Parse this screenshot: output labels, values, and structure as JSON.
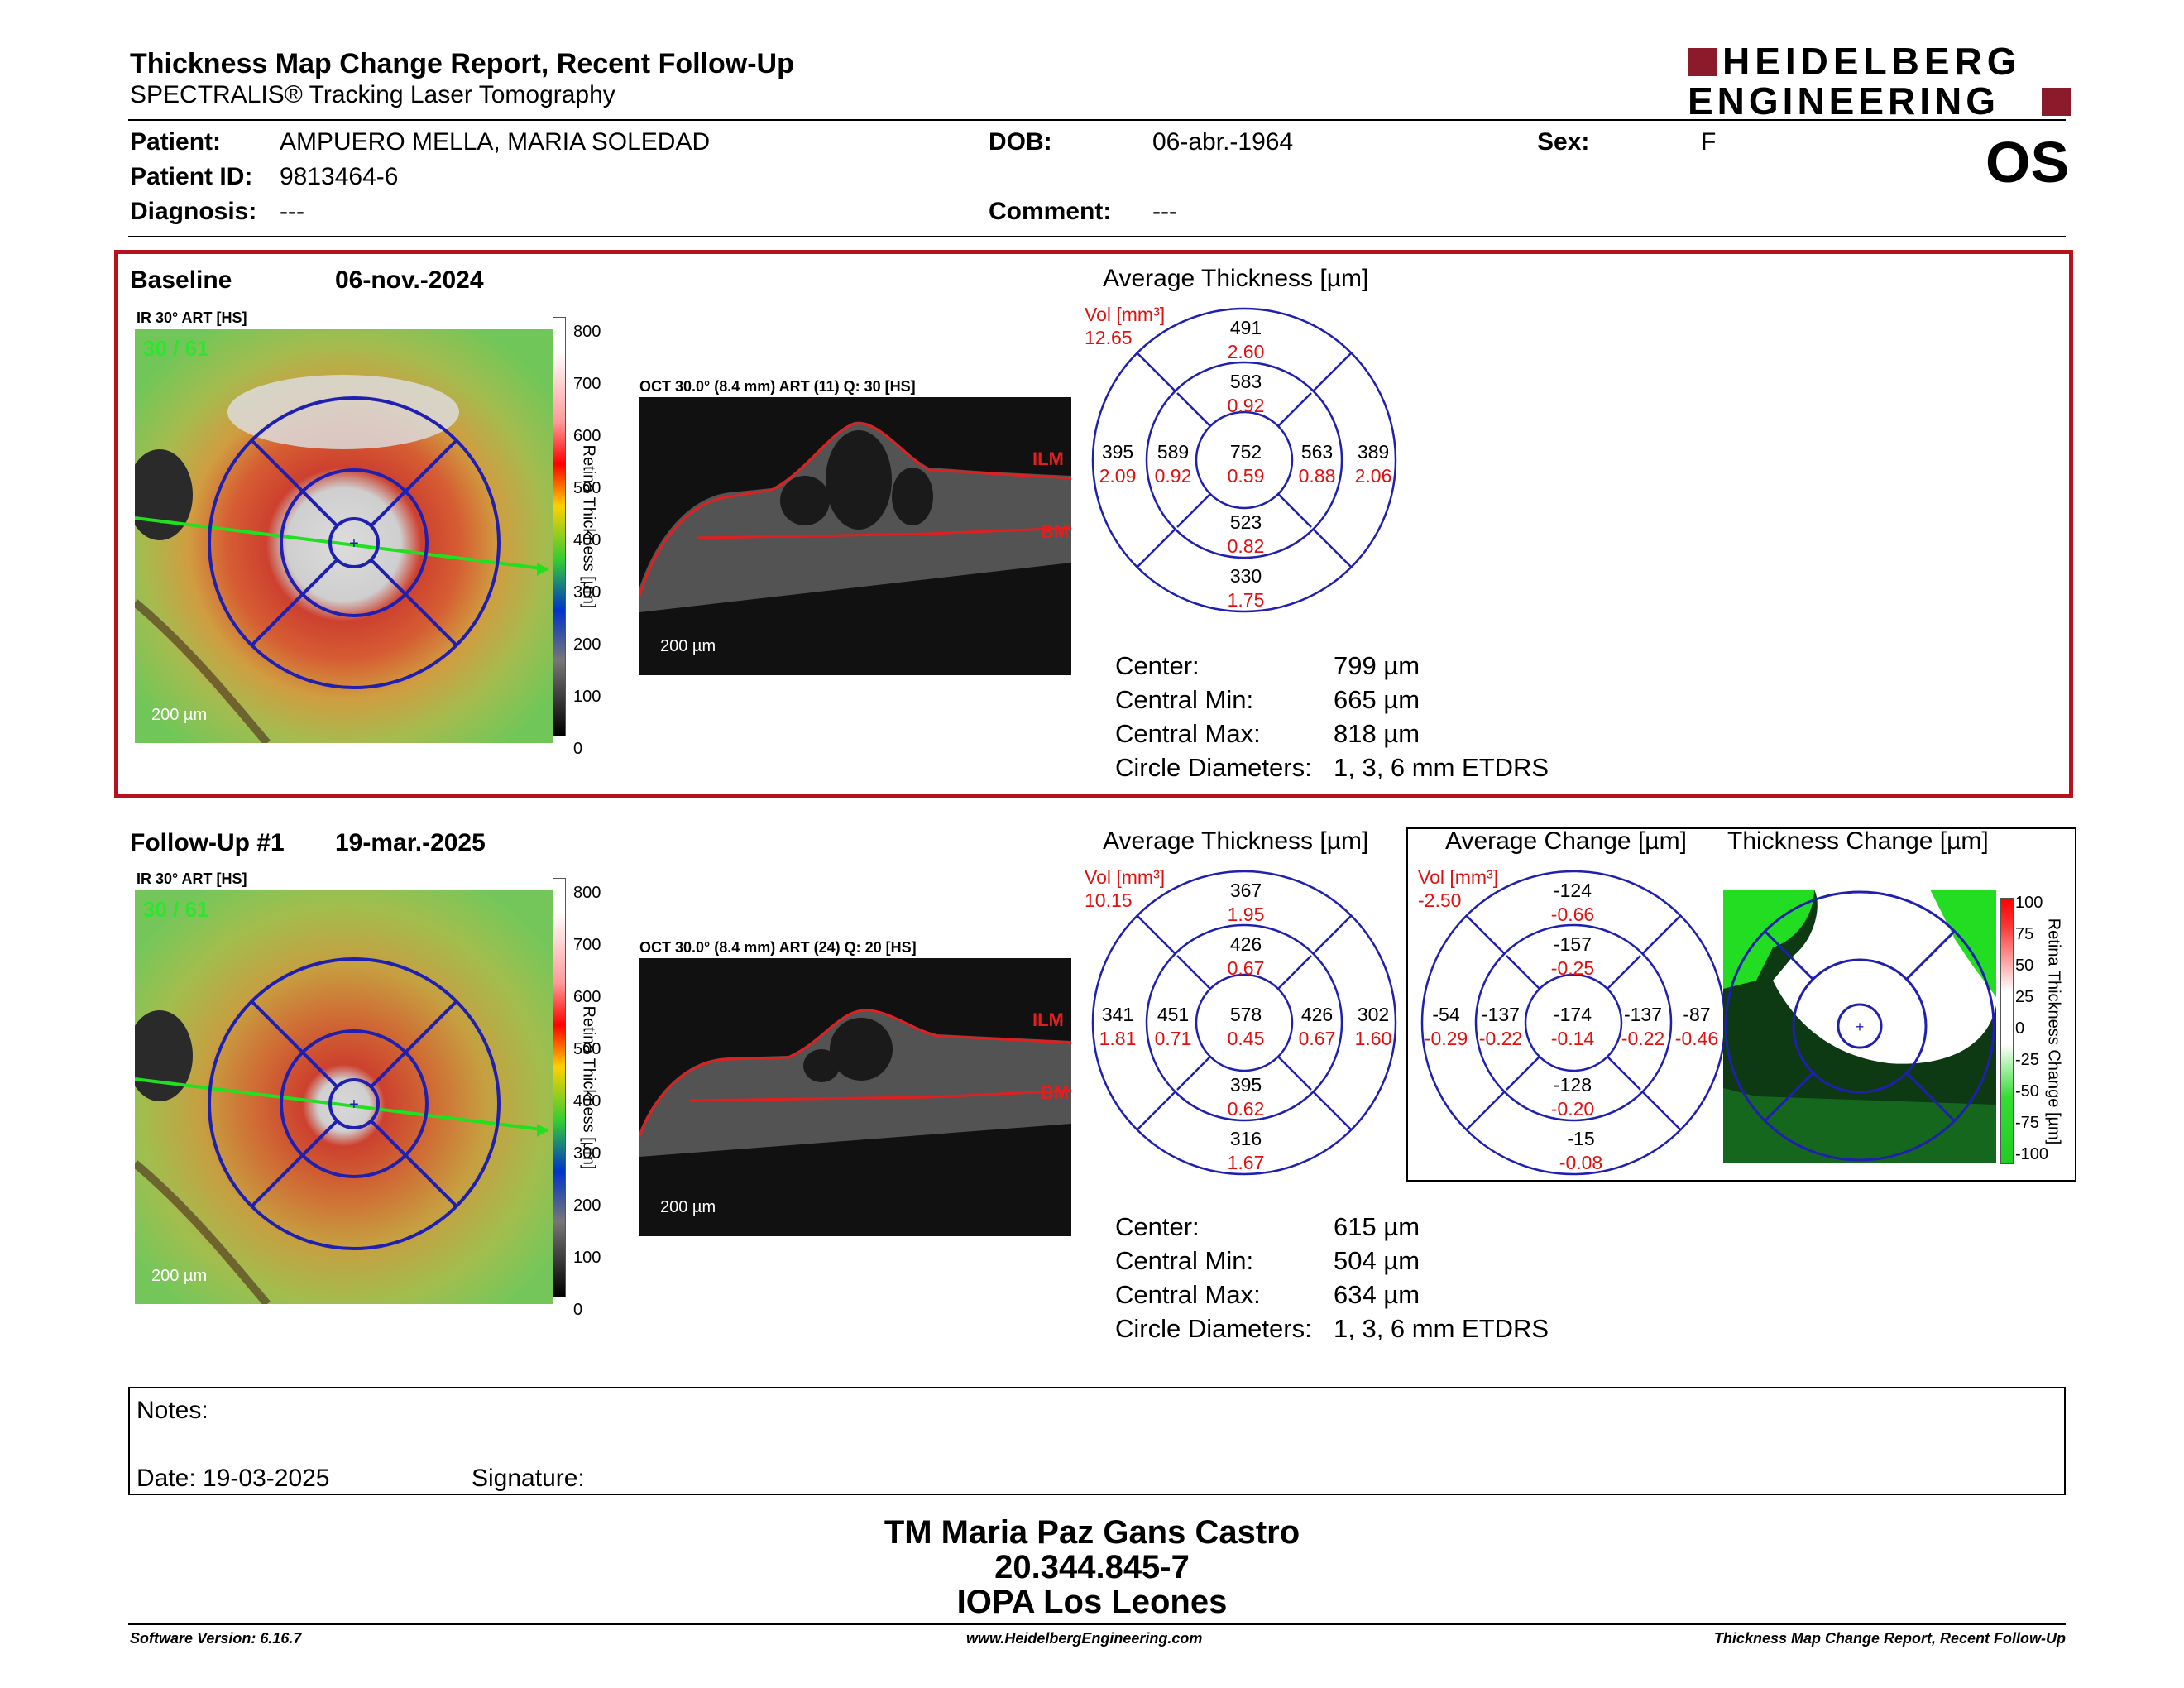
{
  "report": {
    "title": "Thickness Map Change Report, Recent Follow-Up",
    "subtitle": "SPECTRALIS® Tracking Laser Tomography",
    "brand_line1": "HEIDELBERG",
    "brand_line2": "ENGINEERING",
    "eye": "OS"
  },
  "patient": {
    "patient_label": "Patient:",
    "patient_value": "AMPUERO MELLA, MARIA SOLEDAD",
    "dob_label": "DOB:",
    "dob_value": "06-abr.-1964",
    "sex_label": "Sex:",
    "sex_value": "F",
    "id_label": "Patient ID:",
    "id_value": "9813464-6",
    "diag_label": "Diagnosis:",
    "diag_value": "---",
    "comment_label": "Comment:",
    "comment_value": "---"
  },
  "baseline": {
    "heading": "Baseline",
    "date": "06-nov.-2024",
    "ir_label": "IR 30° ART [HS]",
    "frame_counter": "30 / 61",
    "ir_scale": "200 µm",
    "oct_label": "OCT 30.0° (8.4 mm) ART (11) Q: 30 [HS]",
    "oct_scale": "200 µm",
    "ilm": "ILM",
    "bm": "BM",
    "avg_title": "Average Thickness [µm]",
    "vol_label": "Vol [mm³]",
    "vol_total": "12.65",
    "sectors": {
      "center": {
        "t": "752",
        "v": "0.59"
      },
      "inner_sup": {
        "t": "583",
        "v": "0.92"
      },
      "inner_nas": {
        "t": "589",
        "v": "0.92"
      },
      "inner_inf": {
        "t": "523",
        "v": "0.82"
      },
      "inner_tem": {
        "t": "563",
        "v": "0.88"
      },
      "outer_sup": {
        "t": "491",
        "v": "2.60"
      },
      "outer_nas": {
        "t": "395",
        "v": "2.09"
      },
      "outer_inf": {
        "t": "330",
        "v": "1.75"
      },
      "outer_tem": {
        "t": "389",
        "v": "2.06"
      }
    },
    "stats": {
      "center_label": "Center:",
      "center_value": "799 µm",
      "min_label": "Central Min:",
      "min_value": "665 µm",
      "max_label": "Central Max:",
      "max_value": "818 µm",
      "diam_label": "Circle Diameters:",
      "diam_value": "1, 3, 6 mm ETDRS"
    }
  },
  "followup": {
    "heading": "Follow-Up #1",
    "date": "19-mar.-2025",
    "ir_label": "IR 30° ART [HS]",
    "frame_counter": "30 / 61",
    "ir_scale": "200 µm",
    "oct_label": "OCT 30.0° (8.4 mm) ART (24) Q: 20 [HS]",
    "oct_scale": "200 µm",
    "ilm": "ILM",
    "bm": "BM",
    "avg_title": "Average Thickness [µm]",
    "vol_label": "Vol [mm³]",
    "vol_total": "10.15",
    "sectors": {
      "center": {
        "t": "578",
        "v": "0.45"
      },
      "inner_sup": {
        "t": "426",
        "v": "0.67"
      },
      "inner_nas": {
        "t": "451",
        "v": "0.71"
      },
      "inner_inf": {
        "t": "395",
        "v": "0.62"
      },
      "inner_tem": {
        "t": "426",
        "v": "0.67"
      },
      "outer_sup": {
        "t": "367",
        "v": "1.95"
      },
      "outer_nas": {
        "t": "341",
        "v": "1.81"
      },
      "outer_inf": {
        "t": "316",
        "v": "1.67"
      },
      "outer_tem": {
        "t": "302",
        "v": "1.60"
      }
    },
    "stats": {
      "center_label": "Center:",
      "center_value": "615 µm",
      "min_label": "Central Min:",
      "min_value": "504 µm",
      "max_label": "Central Max:",
      "max_value": "634 µm",
      "diam_label": "Circle Diameters:",
      "diam_value": "1, 3, 6 mm ETDRS"
    }
  },
  "change": {
    "avg_change_title": "Average Change [µm]",
    "thickness_change_title": "Thickness Change [µm]",
    "vol_label": "Vol [mm³]",
    "vol_total": "-2.50",
    "sectors": {
      "center": {
        "t": "-174",
        "v": "-0.14"
      },
      "inner_sup": {
        "t": "-157",
        "v": "-0.25"
      },
      "inner_nas": {
        "t": "-137",
        "v": "-0.22"
      },
      "inner_inf": {
        "t": "-128",
        "v": "-0.20"
      },
      "inner_tem": {
        "t": "-137",
        "v": "-0.22"
      },
      "outer_sup": {
        "t": "-124",
        "v": "-0.66"
      },
      "outer_nas": {
        "t": "-54",
        "v": "-0.29"
      },
      "outer_inf": {
        "t": "-15",
        "v": "-0.08"
      },
      "outer_tem": {
        "t": "-87",
        "v": "-0.46"
      }
    },
    "scale_title": "Retina Thickness Change [µm]",
    "scale_ticks": [
      "100",
      "75",
      "50",
      "25",
      "0",
      "-25",
      "-50",
      "-75",
      "-100"
    ]
  },
  "thickness_scale": {
    "title": "Retina Thickness [µm]",
    "ticks": [
      "800",
      "700",
      "600",
      "500",
      "400",
      "300",
      "200",
      "100",
      "0"
    ]
  },
  "notes": {
    "notes_label": "Notes:",
    "date_label": "Date: 19-03-2025",
    "signature_label": "Signature:"
  },
  "signer": {
    "name": "TM Maria Paz Gans Castro",
    "rut": "20.344.845-7",
    "institution": "IOPA Los Leones"
  },
  "footer": {
    "software": "Software Version: 6.16.7",
    "url": "www.HeidelbergEngineering.com",
    "report_name": "Thickness Map Change Report, Recent Follow-Up"
  },
  "colors": {
    "accent_red": "#b7121f",
    "etdrs_blue": "#1f1fb0",
    "volume_red": "#e01010"
  }
}
